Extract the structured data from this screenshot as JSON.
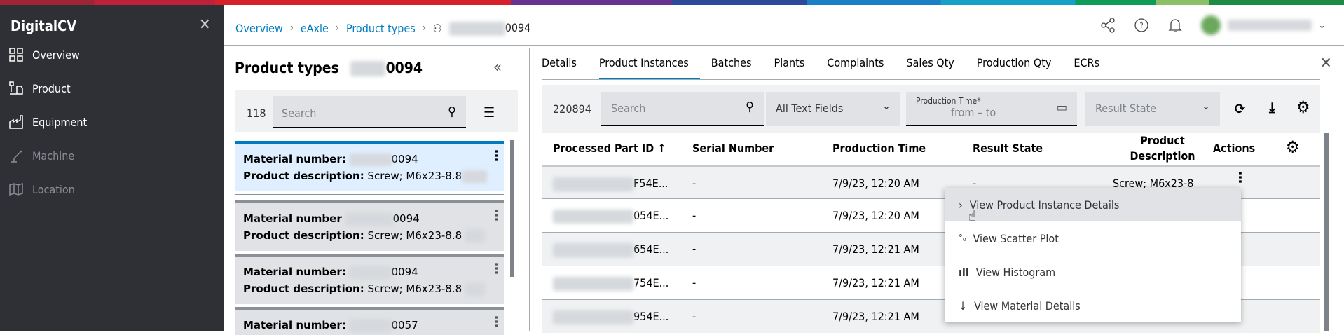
{
  "app": {
    "title": "DigitalCV"
  },
  "sidebar": {
    "items": [
      {
        "label": "Overview",
        "icon": "grid-icon"
      },
      {
        "label": "Product",
        "icon": "product-icon"
      },
      {
        "label": "Equipment",
        "icon": "factory-icon"
      },
      {
        "label": "Machine",
        "icon": "robot-arm-icon",
        "disabled": true
      },
      {
        "label": "Location",
        "icon": "map-icon",
        "disabled": true
      }
    ]
  },
  "breadcrumb": [
    "Overview",
    "eAxle",
    "Product types"
  ],
  "breadcrumb_current_suffix": "0094",
  "left_panel": {
    "title": "Product types",
    "title_suffix": "0094",
    "count": "118",
    "search_placeholder": "Search",
    "cards": [
      {
        "label": "Material number:",
        "suffix": "0094",
        "desc_label": "Product description:",
        "desc": "Screw; M6x23-8.8"
      },
      {
        "label": "Material number",
        "suffix": "0094",
        "desc_label": "Product description:",
        "desc": "Screw; M6x23-8.8"
      },
      {
        "label": "Material number:",
        "suffix": "0094",
        "desc_label": "Product description:",
        "desc": "Screw; M6x23-8.8"
      },
      {
        "label": "Material number:",
        "suffix": "0057"
      }
    ]
  },
  "tabs": [
    "Details",
    "Product Instances",
    "Batches",
    "Plants",
    "Complaints",
    "Sales Qty",
    "Production Qty",
    "ECRs"
  ],
  "active_tab": "Product Instances",
  "toolbar": {
    "count": "220894",
    "search_placeholder": "Search",
    "field_select": "All Text Fields",
    "date_label": "Production Time*",
    "date_placeholder": "from – to",
    "result_state_placeholder": "Result State"
  },
  "table": {
    "columns": [
      "Processed Part ID ↑",
      "Serial Number",
      "Production Time",
      "Result State",
      "Product Description",
      "Actions"
    ],
    "rows": [
      {
        "id": "F54E...",
        "serial": "-",
        "time": "7/9/23, 12:20 AM",
        "state": "-",
        "desc": "Screw; M6x23-8"
      },
      {
        "id": "054E...",
        "serial": "-",
        "time": "7/9/23, 12:20 AM"
      },
      {
        "id": "654E...",
        "serial": "-",
        "time": "7/9/23, 12:21 AM"
      },
      {
        "id": "754E...",
        "serial": "-",
        "time": "7/9/23, 12:21 AM"
      },
      {
        "id": "954E...",
        "serial": "-",
        "time": "7/9/23, 12:21 AM"
      }
    ]
  },
  "context_menu": [
    "View Product Instance Details",
    "View Scatter Plot",
    "View Histogram",
    "View Material Details"
  ],
  "colors": {
    "accent": "#007bc0",
    "sidebar": "#2e3035",
    "surface": "#eff1f2"
  }
}
